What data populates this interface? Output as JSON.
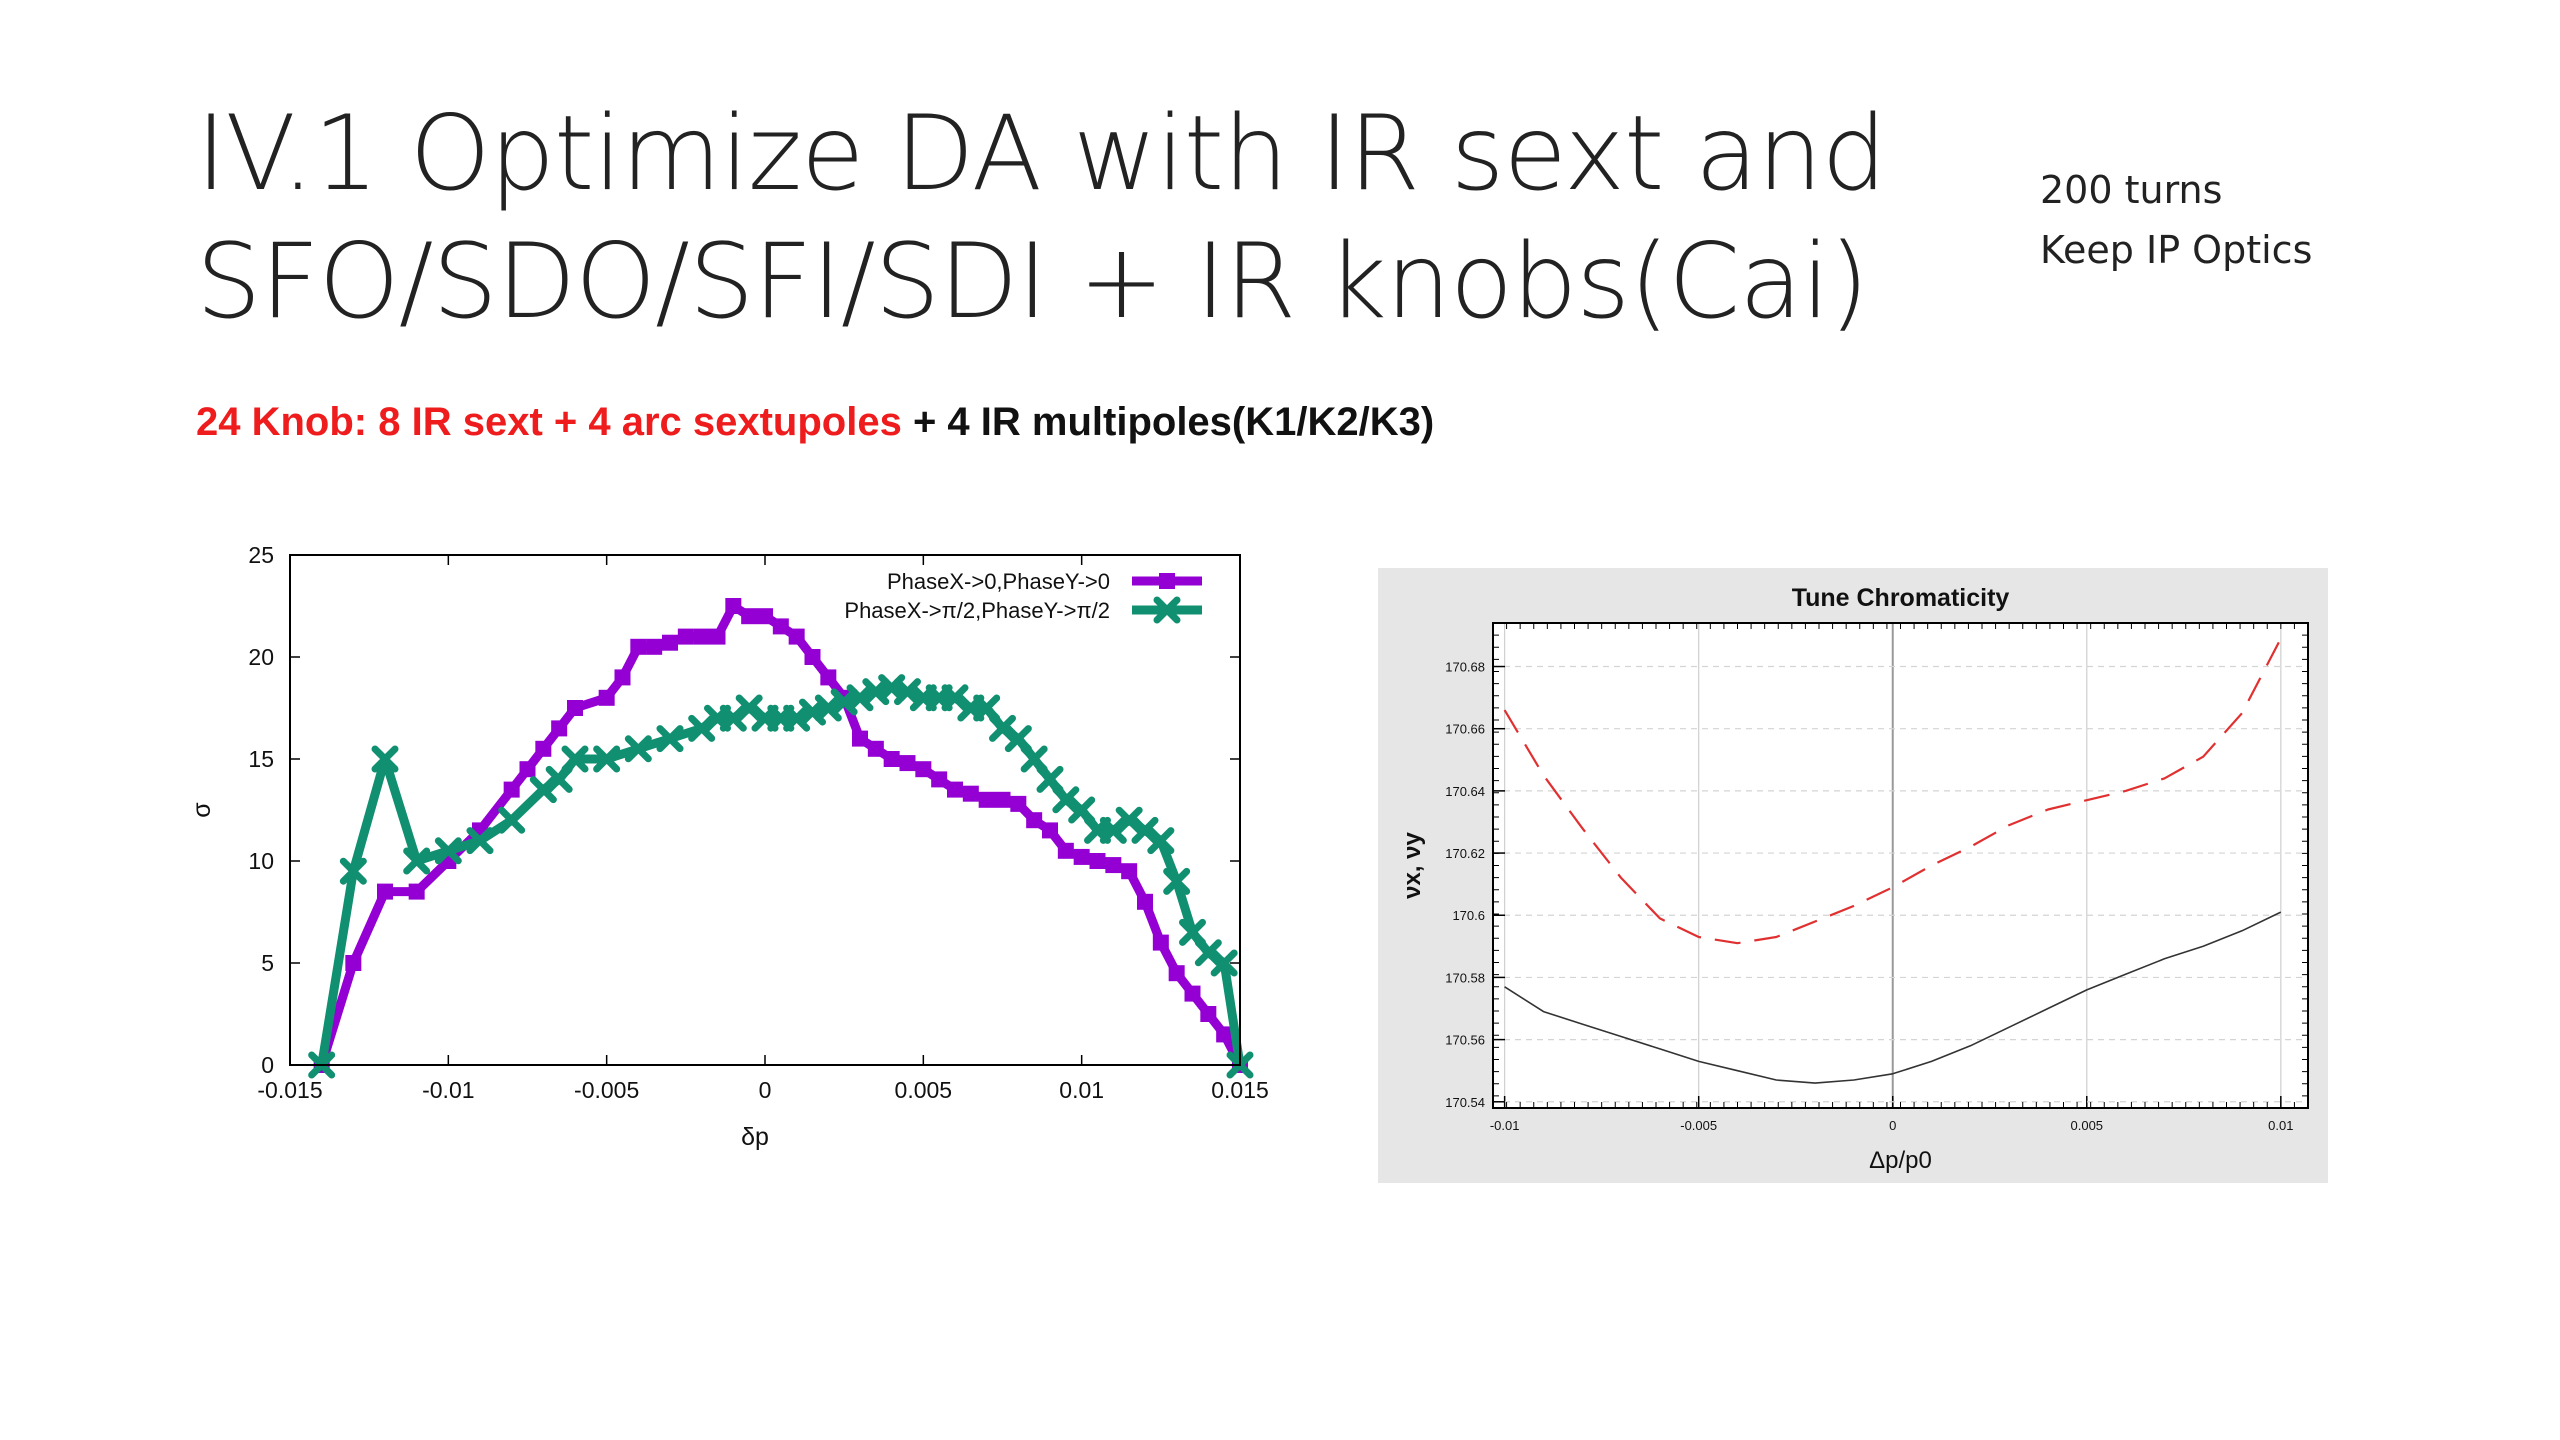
{
  "slide": {
    "title_line1": "IV.1 Optimize DA with IR sext and",
    "title_line2": "SFO/SDO/SFI/SDI + IR knobs(Cai)",
    "note_line1": "200 turns",
    "note_line2": "Keep IP Optics",
    "subtitle_red": "24 Knob: 8 IR sext + 4 arc sextupoles",
    "subtitle_black": " + 4 IR multipoles(K1/K2/K3)"
  },
  "chart_data": [
    {
      "type": "line",
      "title": "",
      "xlabel": "δp",
      "ylabel": "σ",
      "xlim": [
        -0.015,
        0.015
      ],
      "ylim": [
        0,
        25
      ],
      "xticks": [
        "-0.015",
        "-0.01",
        "-0.005",
        "0",
        "0.005",
        "0.01",
        "0.015"
      ],
      "yticks": [
        "0",
        "5",
        "10",
        "15",
        "20",
        "25"
      ],
      "legend_position": "top-right",
      "series": [
        {
          "name": "PhaseX->0,PhaseY->0",
          "color": "#9400d3",
          "marker": "square",
          "x": [
            -0.014,
            -0.013,
            -0.012,
            -0.011,
            -0.01,
            -0.009,
            -0.008,
            -0.0075,
            -0.007,
            -0.0065,
            -0.006,
            -0.005,
            -0.0045,
            -0.004,
            -0.0035,
            -0.003,
            -0.0025,
            -0.002,
            -0.0015,
            -0.001,
            -0.0005,
            0,
            0.0005,
            0.001,
            0.0015,
            0.002,
            0.0025,
            0.003,
            0.0035,
            0.004,
            0.0045,
            0.005,
            0.0055,
            0.006,
            0.0065,
            0.007,
            0.0075,
            0.008,
            0.0085,
            0.009,
            0.0095,
            0.01,
            0.0105,
            0.011,
            0.0115,
            0.012,
            0.0125,
            0.013,
            0.0135,
            0.014,
            0.0145,
            0.015
          ],
          "y": [
            0,
            5,
            8.5,
            8.5,
            10,
            11.5,
            13.5,
            14.5,
            15.5,
            16.5,
            17.5,
            18,
            19,
            20.5,
            20.5,
            20.7,
            21,
            21,
            21,
            22.5,
            22,
            22,
            21.5,
            21,
            20,
            19,
            18,
            16,
            15.5,
            15,
            14.8,
            14.5,
            14,
            13.5,
            13.3,
            13,
            13,
            12.8,
            12,
            11.5,
            10.5,
            10.2,
            10,
            9.8,
            9.5,
            8,
            6,
            4.5,
            3.5,
            2.5,
            1.5,
            0
          ]
        },
        {
          "name": "PhaseX->π/2,PhaseY->π/2",
          "color": "#109070",
          "marker": "cross",
          "x": [
            -0.014,
            -0.013,
            -0.012,
            -0.011,
            -0.01,
            -0.009,
            -0.008,
            -0.007,
            -0.0065,
            -0.006,
            -0.005,
            -0.004,
            -0.003,
            -0.002,
            -0.0015,
            -0.001,
            -0.0005,
            0,
            0.0005,
            0.001,
            0.0015,
            0.002,
            0.0025,
            0.003,
            0.0035,
            0.004,
            0.0045,
            0.005,
            0.0055,
            0.006,
            0.0065,
            0.007,
            0.0075,
            0.008,
            0.0085,
            0.009,
            0.0095,
            0.01,
            0.0105,
            0.011,
            0.0115,
            0.012,
            0.0125,
            0.013,
            0.0135,
            0.014,
            0.0145,
            0.015
          ],
          "y": [
            0,
            9.5,
            15,
            10,
            10.5,
            11,
            12,
            13.5,
            14,
            15,
            15,
            15.5,
            16,
            16.5,
            17,
            17,
            17.5,
            17,
            17,
            17,
            17.3,
            17.5,
            17.8,
            18,
            18.3,
            18.5,
            18.3,
            18,
            18,
            18,
            17.5,
            17.5,
            16.5,
            16,
            15,
            14,
            13,
            12.5,
            11.5,
            11.5,
            12,
            11.5,
            11,
            9,
            6.5,
            5.5,
            5,
            0
          ]
        }
      ]
    },
    {
      "type": "line",
      "title": "Tune Chromaticity",
      "xlabel": "Δp/p0",
      "ylabel": "νx, νy",
      "xlim": [
        -0.0103,
        0.0107
      ],
      "ylim": [
        170.538,
        170.694
      ],
      "xticks": [
        "-0.01",
        "-0.005",
        "0",
        "0.005",
        "0.01"
      ],
      "yticks": [
        "170.54",
        "170.56",
        "170.58",
        "170.6",
        "170.62",
        "170.64",
        "170.66",
        "170.68"
      ],
      "grid": true,
      "series": [
        {
          "color": "#e03030",
          "dash": true,
          "x": [
            -0.01,
            -0.009,
            -0.008,
            -0.007,
            -0.006,
            -0.005,
            -0.004,
            -0.003,
            -0.002,
            -0.001,
            0,
            0.001,
            0.002,
            0.003,
            0.004,
            0.005,
            0.006,
            0.007,
            0.008,
            0.009,
            0.01
          ],
          "y": [
            170.666,
            170.645,
            170.628,
            170.612,
            170.599,
            170.593,
            170.591,
            170.593,
            170.598,
            170.603,
            170.609,
            170.616,
            170.622,
            170.629,
            170.634,
            170.637,
            170.64,
            170.644,
            170.651,
            170.665,
            170.689
          ]
        },
        {
          "color": "#333333",
          "dash": false,
          "x": [
            -0.01,
            -0.009,
            -0.008,
            -0.007,
            -0.006,
            -0.005,
            -0.004,
            -0.003,
            -0.002,
            -0.001,
            0,
            0.001,
            0.002,
            0.003,
            0.004,
            0.005,
            0.006,
            0.007,
            0.008,
            0.009,
            0.01
          ],
          "y": [
            170.577,
            170.569,
            170.565,
            170.561,
            170.557,
            170.553,
            170.55,
            170.547,
            170.546,
            170.547,
            170.549,
            170.553,
            170.558,
            170.564,
            170.57,
            170.576,
            170.581,
            170.586,
            170.59,
            170.595,
            170.601
          ]
        }
      ]
    }
  ]
}
